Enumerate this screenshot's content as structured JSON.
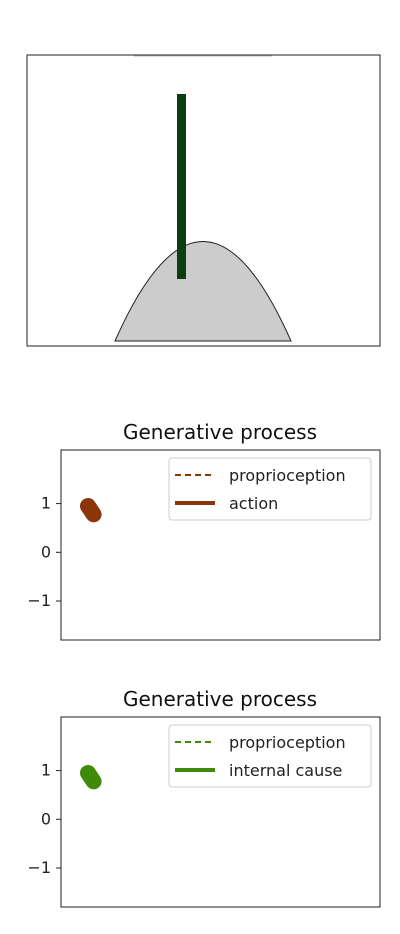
{
  "scene": {
    "hill_color": "#cccccc",
    "pole_color": "#0f3d12"
  },
  "chart_data": [
    {
      "type": "line",
      "title": "Generative process",
      "ylim": [
        -1.8,
        2.1
      ],
      "yticks": [
        {
          "value": 1,
          "label": "1"
        },
        {
          "value": 0,
          "label": "0"
        },
        {
          "value": -1,
          "label": "−1"
        }
      ],
      "x_ticks_shown": false,
      "legend_position": "upper-right",
      "series": [
        {
          "name": "proprioception",
          "style": "dashed",
          "color": "#8b3508",
          "points": [
            [
              0,
              0.95
            ],
            [
              0.02,
              0.78
            ]
          ]
        },
        {
          "name": "action",
          "style": "solid",
          "color": "#8b3508",
          "points": [
            [
              0,
              0.95
            ],
            [
              0.02,
              0.78
            ]
          ]
        }
      ]
    },
    {
      "type": "line",
      "title": "Generative process",
      "ylim": [
        -1.8,
        2.1
      ],
      "yticks": [
        {
          "value": 1,
          "label": "1"
        },
        {
          "value": 0,
          "label": "0"
        },
        {
          "value": -1,
          "label": "−1"
        }
      ],
      "x_ticks_shown": false,
      "legend_position": "upper-right",
      "series": [
        {
          "name": "proprioception",
          "style": "dashed",
          "color": "#3f8a0a",
          "points": [
            [
              0,
              0.95
            ],
            [
              0.02,
              0.78
            ]
          ]
        },
        {
          "name": "internal cause",
          "style": "solid",
          "color": "#3f8a0a",
          "points": [
            [
              0,
              0.95
            ],
            [
              0.02,
              0.78
            ]
          ]
        }
      ]
    }
  ]
}
